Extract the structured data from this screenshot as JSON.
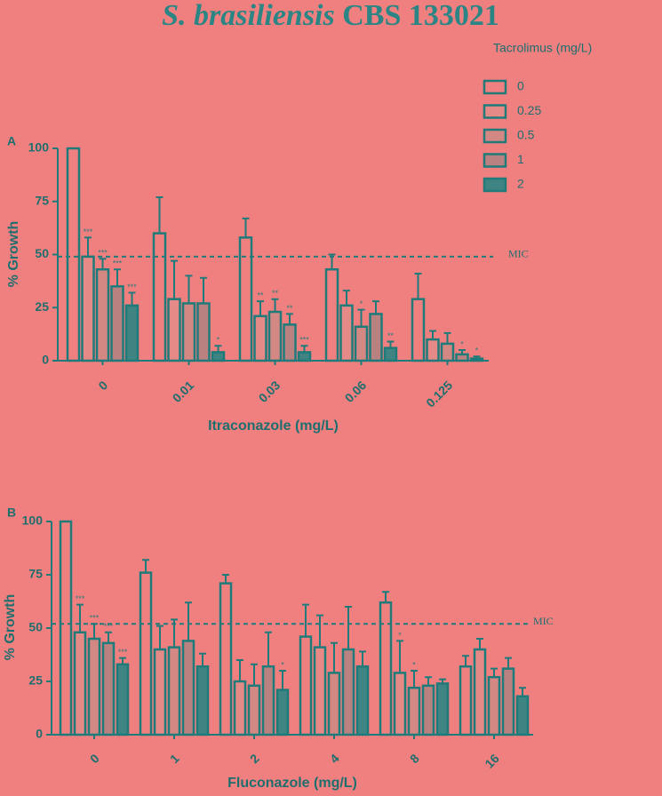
{
  "title_species": "S. brasiliensis",
  "title_strain": "CBS 133021",
  "legend_title": "Tacrolimus (mg/L)",
  "chart_data": [
    {
      "type": "bar",
      "panel": "A",
      "x_label": "Itraconazole (mg/L)",
      "y_label": "% Growth",
      "categories": [
        "0",
        "0.01",
        "0.03",
        "0.06",
        "0.125"
      ],
      "ylim": [
        0,
        100
      ],
      "yticks": [
        0,
        25,
        50,
        75,
        100
      ],
      "mic": {
        "value": 49,
        "label": "MIC"
      },
      "series": [
        {
          "name": "0",
          "color": "#f08080",
          "values": [
            100,
            60,
            58,
            43,
            29
          ],
          "errors": [
            0,
            17,
            9,
            7,
            12
          ],
          "significance": [
            null,
            null,
            null,
            null,
            null
          ]
        },
        {
          "name": "0.25",
          "color": "#e58a86",
          "values": [
            49,
            29,
            21,
            26,
            10
          ],
          "errors": [
            9,
            18,
            7,
            7,
            4
          ],
          "significance": [
            "***",
            null,
            "**",
            null,
            null
          ]
        },
        {
          "name": "0.5",
          "color": "#d48884",
          "values": [
            43,
            27,
            23,
            16,
            8
          ],
          "errors": [
            5,
            13,
            6,
            8,
            5
          ],
          "significance": [
            "***",
            null,
            "**",
            "*",
            null
          ]
        },
        {
          "name": "1",
          "color": "#b98280",
          "values": [
            35,
            27,
            17,
            22,
            3
          ],
          "errors": [
            8,
            12,
            5,
            6,
            2
          ],
          "significance": [
            "***",
            null,
            "**",
            null,
            "*"
          ]
        },
        {
          "name": "2",
          "color": "#3f8482",
          "values": [
            26,
            4,
            4,
            6,
            1
          ],
          "errors": [
            6,
            3,
            3,
            3,
            1
          ],
          "significance": [
            "***",
            "*",
            "***",
            "**",
            "*"
          ]
        }
      ]
    },
    {
      "type": "bar",
      "panel": "B",
      "x_label": "Fluconazole (mg/L)",
      "y_label": "% Growth",
      "categories": [
        "0",
        "1",
        "2",
        "4",
        "8",
        "16"
      ],
      "ylim": [
        0,
        100
      ],
      "yticks": [
        0,
        25,
        50,
        75,
        100
      ],
      "mic": {
        "value": 52,
        "label": "MIC"
      },
      "series": [
        {
          "color": "#f08080",
          "values": [
            100,
            76,
            71,
            46,
            62,
            32
          ],
          "errors": [
            0,
            6,
            4,
            15,
            5,
            5
          ],
          "significance": [
            null,
            null,
            null,
            null,
            null,
            null
          ]
        },
        {
          "color": "#e58a86",
          "values": [
            48,
            40,
            25,
            41,
            29,
            40
          ],
          "errors": [
            13,
            11,
            10,
            15,
            15,
            5
          ],
          "significance": [
            "***",
            null,
            null,
            null,
            "*",
            null
          ]
        },
        {
          "color": "#d48884",
          "values": [
            45,
            41,
            23,
            29,
            22,
            27
          ],
          "errors": [
            7,
            13,
            10,
            14,
            8,
            4
          ],
          "significance": [
            "***",
            null,
            null,
            null,
            "*",
            null
          ]
        },
        {
          "color": "#b98280",
          "values": [
            43,
            44,
            32,
            40,
            23,
            31
          ],
          "errors": [
            5,
            18,
            16,
            20,
            4,
            5
          ],
          "significance": [
            "***",
            null,
            null,
            null,
            null,
            null
          ]
        },
        {
          "color": "#3f8482",
          "values": [
            33,
            32,
            21,
            32,
            24,
            18
          ],
          "errors": [
            3,
            6,
            9,
            7,
            2,
            4
          ],
          "significance": [
            "***",
            null,
            "*",
            null,
            null,
            null
          ]
        }
      ]
    }
  ]
}
